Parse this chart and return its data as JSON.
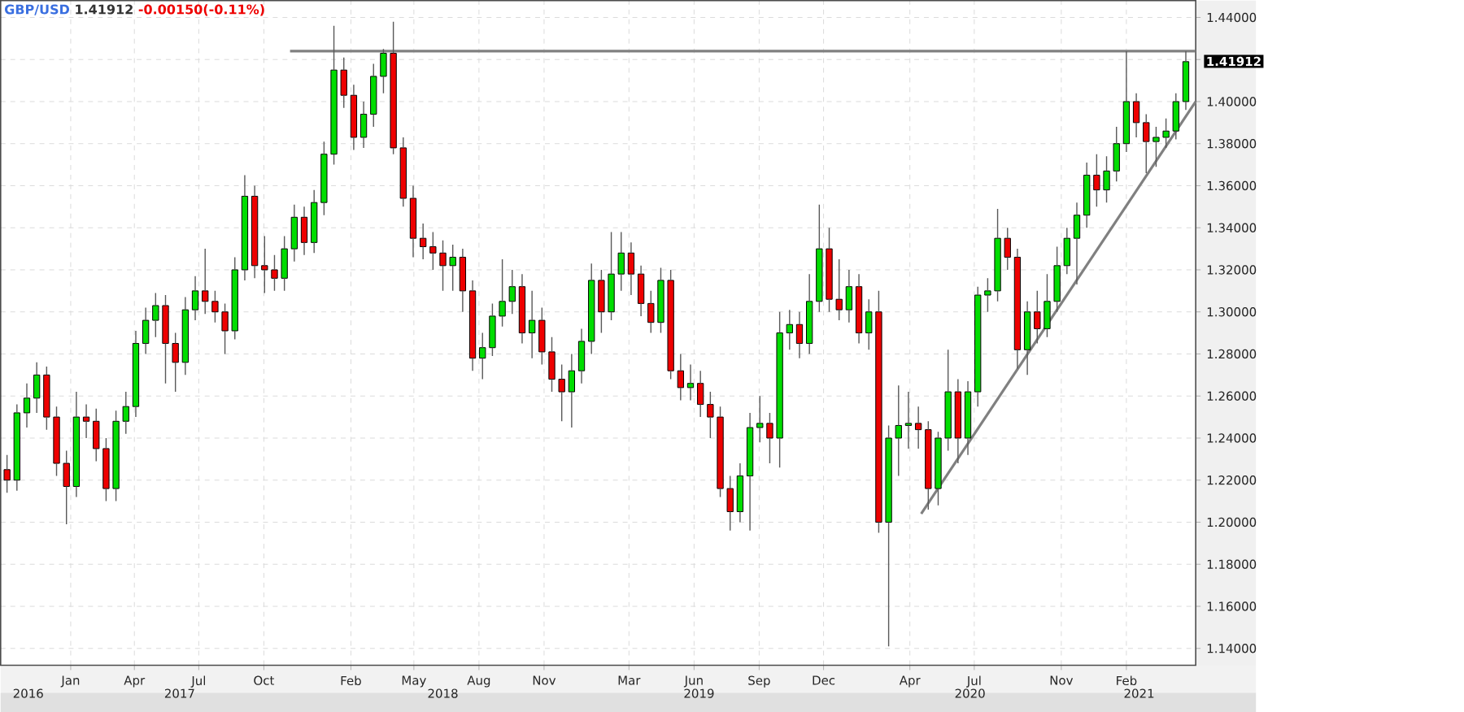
{
  "chart_data": {
    "type": "candlestick",
    "title": "GBP/USD",
    "subtitle": "1.41912",
    "annotations": [
      "-0.00150(-0.11%)",
      {
        "text": "1.41912",
        "x": "2021-05-10",
        "y": 1.41912
      }
    ],
    "x": [
      "2016-10-17",
      "2016-10-31",
      "2016-11-14",
      "2016-11-28",
      "2016-12-12",
      "2016-12-26",
      "2017-01-09",
      "2017-01-23",
      "2017-02-06",
      "2017-02-20",
      "2017-03-06",
      "2017-03-20",
      "2017-04-03",
      "2017-04-17",
      "2017-05-01",
      "2017-05-15",
      "2017-05-29",
      "2017-06-12",
      "2017-06-26",
      "2017-07-10",
      "2017-07-24",
      "2017-08-07",
      "2017-08-21",
      "2017-09-04",
      "2017-09-18",
      "2017-10-02",
      "2017-10-16",
      "2017-10-30",
      "2017-11-13",
      "2017-11-27",
      "2017-12-11",
      "2017-12-25",
      "2018-01-08",
      "2018-01-22",
      "2018-02-05",
      "2018-02-19",
      "2018-03-05",
      "2018-03-19",
      "2018-04-02",
      "2018-04-16",
      "2018-04-30",
      "2018-05-14",
      "2018-05-28",
      "2018-06-11",
      "2018-06-25",
      "2018-07-09",
      "2018-07-23",
      "2018-08-06",
      "2018-08-20",
      "2018-09-03",
      "2018-09-17",
      "2018-10-01",
      "2018-10-15",
      "2018-10-29",
      "2018-11-12",
      "2018-11-26",
      "2018-12-10",
      "2018-12-24",
      "2019-01-07",
      "2019-01-21",
      "2019-02-04",
      "2019-02-18",
      "2019-03-04",
      "2019-03-18",
      "2019-04-01",
      "2019-04-15",
      "2019-04-29",
      "2019-05-13",
      "2019-05-27",
      "2019-06-10",
      "2019-06-24",
      "2019-07-08",
      "2019-07-22",
      "2019-08-05",
      "2019-08-19",
      "2019-09-02",
      "2019-09-16",
      "2019-09-30",
      "2019-10-14",
      "2019-10-28",
      "2019-11-11",
      "2019-11-25",
      "2019-12-09",
      "2019-12-23",
      "2020-01-06",
      "2020-01-20",
      "2020-02-03",
      "2020-02-17",
      "2020-03-02",
      "2020-03-16",
      "2020-03-30",
      "2020-04-13",
      "2020-04-27",
      "2020-05-11",
      "2020-05-25",
      "2020-06-08",
      "2020-06-22",
      "2020-07-06",
      "2020-07-20",
      "2020-08-03",
      "2020-08-17",
      "2020-08-31",
      "2020-09-14",
      "2020-09-28",
      "2020-10-12",
      "2020-10-26",
      "2020-11-09",
      "2020-11-23",
      "2020-12-07",
      "2020-12-21",
      "2021-01-04",
      "2021-01-18",
      "2021-02-01",
      "2021-02-15",
      "2021-03-01",
      "2021-03-15",
      "2021-03-29",
      "2021-04-12",
      "2021-04-26",
      "2021-05-10"
    ],
    "ohlc": [
      [
        1.225,
        1.232,
        1.214,
        1.22
      ],
      [
        1.22,
        1.256,
        1.215,
        1.252
      ],
      [
        1.252,
        1.266,
        1.245,
        1.259
      ],
      [
        1.259,
        1.276,
        1.252,
        1.27
      ],
      [
        1.27,
        1.274,
        1.244,
        1.25
      ],
      [
        1.25,
        1.255,
        1.222,
        1.228
      ],
      [
        1.228,
        1.234,
        1.199,
        1.217
      ],
      [
        1.217,
        1.262,
        1.212,
        1.25
      ],
      [
        1.25,
        1.256,
        1.24,
        1.248
      ],
      [
        1.248,
        1.254,
        1.229,
        1.235
      ],
      [
        1.235,
        1.24,
        1.21,
        1.216
      ],
      [
        1.216,
        1.253,
        1.21,
        1.248
      ],
      [
        1.248,
        1.262,
        1.242,
        1.255
      ],
      [
        1.255,
        1.291,
        1.25,
        1.285
      ],
      [
        1.285,
        1.302,
        1.28,
        1.296
      ],
      [
        1.296,
        1.309,
        1.288,
        1.303
      ],
      [
        1.303,
        1.308,
        1.266,
        1.285
      ],
      [
        1.285,
        1.29,
        1.262,
        1.276
      ],
      [
        1.276,
        1.307,
        1.27,
        1.301
      ],
      [
        1.301,
        1.317,
        1.296,
        1.31
      ],
      [
        1.31,
        1.33,
        1.299,
        1.305
      ],
      [
        1.305,
        1.31,
        1.295,
        1.3
      ],
      [
        1.3,
        1.304,
        1.28,
        1.291
      ],
      [
        1.291,
        1.326,
        1.287,
        1.32
      ],
      [
        1.32,
        1.365,
        1.315,
        1.355
      ],
      [
        1.355,
        1.36,
        1.316,
        1.322
      ],
      [
        1.322,
        1.336,
        1.309,
        1.32
      ],
      [
        1.32,
        1.327,
        1.31,
        1.316
      ],
      [
        1.316,
        1.336,
        1.31,
        1.33
      ],
      [
        1.33,
        1.351,
        1.324,
        1.345
      ],
      [
        1.345,
        1.35,
        1.327,
        1.333
      ],
      [
        1.333,
        1.358,
        1.328,
        1.352
      ],
      [
        1.352,
        1.381,
        1.346,
        1.375
      ],
      [
        1.375,
        1.436,
        1.37,
        1.415
      ],
      [
        1.415,
        1.421,
        1.397,
        1.403
      ],
      [
        1.403,
        1.408,
        1.377,
        1.383
      ],
      [
        1.383,
        1.4,
        1.378,
        1.394
      ],
      [
        1.394,
        1.418,
        1.388,
        1.412
      ],
      [
        1.412,
        1.425,
        1.404,
        1.423
      ],
      [
        1.423,
        1.438,
        1.375,
        1.378
      ],
      [
        1.378,
        1.383,
        1.35,
        1.354
      ],
      [
        1.354,
        1.36,
        1.326,
        1.335
      ],
      [
        1.335,
        1.342,
        1.325,
        1.331
      ],
      [
        1.331,
        1.338,
        1.32,
        1.328
      ],
      [
        1.328,
        1.334,
        1.31,
        1.322
      ],
      [
        1.322,
        1.332,
        1.31,
        1.326
      ],
      [
        1.326,
        1.33,
        1.3,
        1.31
      ],
      [
        1.31,
        1.315,
        1.272,
        1.278
      ],
      [
        1.278,
        1.29,
        1.268,
        1.283
      ],
      [
        1.283,
        1.304,
        1.279,
        1.298
      ],
      [
        1.298,
        1.325,
        1.293,
        1.305
      ],
      [
        1.305,
        1.32,
        1.299,
        1.312
      ],
      [
        1.312,
        1.318,
        1.285,
        1.29
      ],
      [
        1.29,
        1.31,
        1.278,
        1.296
      ],
      [
        1.296,
        1.302,
        1.275,
        1.281
      ],
      [
        1.281,
        1.288,
        1.262,
        1.268
      ],
      [
        1.268,
        1.275,
        1.248,
        1.262
      ],
      [
        1.262,
        1.28,
        1.245,
        1.272
      ],
      [
        1.272,
        1.292,
        1.266,
        1.286
      ],
      [
        1.286,
        1.323,
        1.28,
        1.315
      ],
      [
        1.315,
        1.32,
        1.29,
        1.3
      ],
      [
        1.3,
        1.338,
        1.296,
        1.318
      ],
      [
        1.318,
        1.338,
        1.31,
        1.328
      ],
      [
        1.328,
        1.333,
        1.308,
        1.318
      ],
      [
        1.318,
        1.322,
        1.298,
        1.304
      ],
      [
        1.304,
        1.31,
        1.29,
        1.295
      ],
      [
        1.295,
        1.321,
        1.29,
        1.315
      ],
      [
        1.315,
        1.32,
        1.268,
        1.272
      ],
      [
        1.272,
        1.28,
        1.258,
        1.264
      ],
      [
        1.264,
        1.275,
        1.258,
        1.266
      ],
      [
        1.266,
        1.272,
        1.25,
        1.256
      ],
      [
        1.256,
        1.262,
        1.24,
        1.25
      ],
      [
        1.25,
        1.255,
        1.212,
        1.216
      ],
      [
        1.216,
        1.222,
        1.196,
        1.205
      ],
      [
        1.205,
        1.228,
        1.2,
        1.222
      ],
      [
        1.222,
        1.252,
        1.196,
        1.245
      ],
      [
        1.245,
        1.26,
        1.238,
        1.247
      ],
      [
        1.247,
        1.252,
        1.228,
        1.24
      ],
      [
        1.24,
        1.3,
        1.226,
        1.29
      ],
      [
        1.29,
        1.301,
        1.282,
        1.294
      ],
      [
        1.294,
        1.3,
        1.278,
        1.285
      ],
      [
        1.285,
        1.318,
        1.28,
        1.305
      ],
      [
        1.305,
        1.351,
        1.3,
        1.33
      ],
      [
        1.33,
        1.34,
        1.3,
        1.306
      ],
      [
        1.306,
        1.325,
        1.296,
        1.301
      ],
      [
        1.301,
        1.32,
        1.295,
        1.312
      ],
      [
        1.312,
        1.318,
        1.285,
        1.29
      ],
      [
        1.29,
        1.306,
        1.282,
        1.3
      ],
      [
        1.3,
        1.31,
        1.195,
        1.2
      ],
      [
        1.2,
        1.246,
        1.141,
        1.24
      ],
      [
        1.24,
        1.265,
        1.222,
        1.246
      ],
      [
        1.246,
        1.262,
        1.235,
        1.247
      ],
      [
        1.247,
        1.255,
        1.235,
        1.244
      ],
      [
        1.244,
        1.248,
        1.206,
        1.216
      ],
      [
        1.216,
        1.243,
        1.208,
        1.24
      ],
      [
        1.24,
        1.282,
        1.234,
        1.262
      ],
      [
        1.262,
        1.268,
        1.228,
        1.24
      ],
      [
        1.24,
        1.267,
        1.232,
        1.262
      ],
      [
        1.262,
        1.312,
        1.255,
        1.308
      ],
      [
        1.308,
        1.316,
        1.3,
        1.31
      ],
      [
        1.31,
        1.349,
        1.305,
        1.335
      ],
      [
        1.335,
        1.34,
        1.32,
        1.326
      ],
      [
        1.326,
        1.33,
        1.273,
        1.282
      ],
      [
        1.282,
        1.305,
        1.27,
        1.3
      ],
      [
        1.3,
        1.31,
        1.285,
        1.292
      ],
      [
        1.292,
        1.318,
        1.288,
        1.305
      ],
      [
        1.305,
        1.331,
        1.3,
        1.322
      ],
      [
        1.322,
        1.34,
        1.318,
        1.335
      ],
      [
        1.335,
        1.352,
        1.313,
        1.346
      ],
      [
        1.346,
        1.371,
        1.34,
        1.365
      ],
      [
        1.365,
        1.375,
        1.35,
        1.358
      ],
      [
        1.358,
        1.374,
        1.352,
        1.367
      ],
      [
        1.367,
        1.388,
        1.362,
        1.38
      ],
      [
        1.38,
        1.424,
        1.376,
        1.4
      ],
      [
        1.4,
        1.404,
        1.383,
        1.39
      ],
      [
        1.39,
        1.394,
        1.366,
        1.381
      ],
      [
        1.381,
        1.388,
        1.369,
        1.383
      ],
      [
        1.383,
        1.392,
        1.378,
        1.386
      ],
      [
        1.386,
        1.404,
        1.382,
        1.4
      ],
      [
        1.4,
        1.424,
        1.396,
        1.419
      ]
    ],
    "series": [
      {
        "type": "line",
        "color": "#808080",
        "x": [
          "2017-11-21",
          "2021-05-24"
        ],
        "values": [
          1.424,
          1.424
        ]
      },
      {
        "type": "line",
        "color": "#808080",
        "x": [
          "2020-05-01",
          "2021-05-24"
        ],
        "values": [
          1.204,
          1.4
        ]
      }
    ],
    "xlim": [
      "2016-10-08",
      "2021-05-24"
    ],
    "xticks": [
      {
        "value": "2017-01-15",
        "label": "Jan"
      },
      {
        "value": "2017-04-15",
        "label": "Apr"
      },
      {
        "value": "2017-07-15",
        "label": "Jul"
      },
      {
        "value": "2017-10-15",
        "label": "Oct"
      },
      {
        "value": "2018-02-15",
        "label": "Feb"
      },
      {
        "value": "2018-05-15",
        "label": "May"
      },
      {
        "value": "2018-08-15",
        "label": "Aug"
      },
      {
        "value": "2018-11-15",
        "label": "Nov"
      },
      {
        "value": "2019-03-15",
        "label": "Mar"
      },
      {
        "value": "2019-06-15",
        "label": "Jun"
      },
      {
        "value": "2019-09-15",
        "label": "Sep"
      },
      {
        "value": "2019-12-15",
        "label": "Dec"
      },
      {
        "value": "2020-04-15",
        "label": "Apr"
      },
      {
        "value": "2020-07-15",
        "label": "Jul"
      },
      {
        "value": "2020-11-15",
        "label": "Nov"
      },
      {
        "value": "2021-02-15",
        "label": "Feb"
      }
    ],
    "x2lim": [
      "2016-10-08",
      "2021-05-24"
    ],
    "x2ticks": [
      {
        "value": "2016-11-16",
        "label": "2016"
      },
      {
        "value": "2017-06-18",
        "label": "2017"
      },
      {
        "value": "2018-06-25",
        "label": "2018"
      },
      {
        "value": "2019-06-22",
        "label": "2019"
      },
      {
        "value": "2020-07-09",
        "label": "2020"
      },
      {
        "value": "2021-03-05",
        "label": "2021"
      }
    ],
    "ylim": [
      1.132,
      1.448
    ],
    "yticks": [
      {
        "value": 1.14,
        "label": "1.14000"
      },
      {
        "value": 1.16,
        "label": "1.16000"
      },
      {
        "value": 1.18,
        "label": "1.18000"
      },
      {
        "value": 1.2,
        "label": "1.20000"
      },
      {
        "value": 1.22,
        "label": "1.22000"
      },
      {
        "value": 1.24,
        "label": "1.24000"
      },
      {
        "value": 1.26,
        "label": "1.26000"
      },
      {
        "value": 1.28,
        "label": "1.28000"
      },
      {
        "value": 1.3,
        "label": "1.30000"
      },
      {
        "value": 1.32,
        "label": "1.32000"
      },
      {
        "value": 1.34,
        "label": "1.34000"
      },
      {
        "value": 1.36,
        "label": "1.36000"
      },
      {
        "value": 1.38,
        "label": "1.38000"
      },
      {
        "value": 1.4,
        "label": "1.40000"
      },
      {
        "value": 1.42,
        "label": null
      },
      {
        "value": 1.44,
        "label": "1.44000"
      }
    ],
    "grid": true
  }
}
